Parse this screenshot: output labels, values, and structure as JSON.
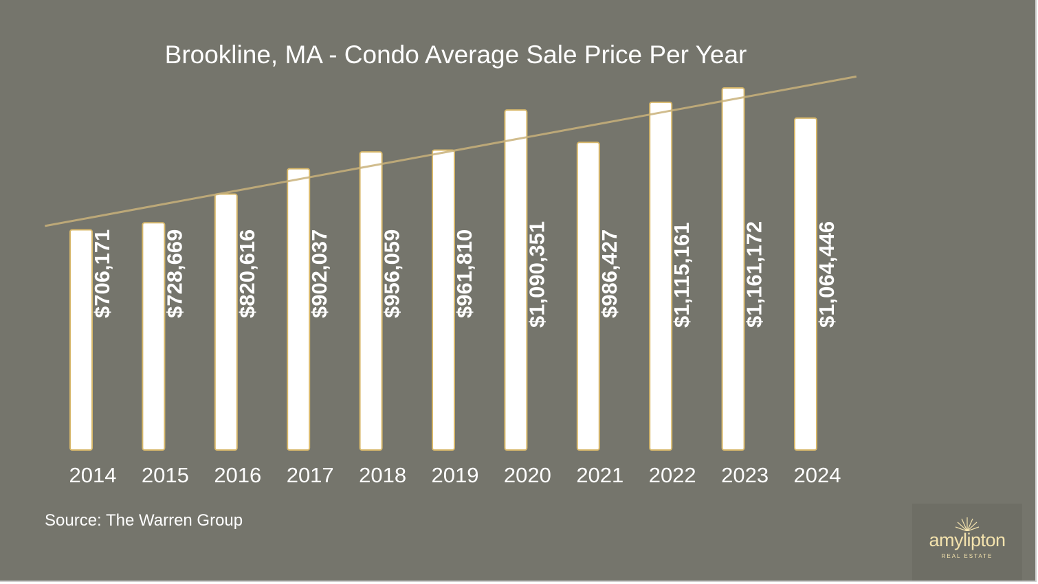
{
  "source": "Source: The Warren Group",
  "logo": {
    "word_part1": "amy",
    "word_part2": "lipton",
    "sub": "REAL ESTATE"
  },
  "colors": {
    "background": "#75756c",
    "bar_fill": "#ffffff",
    "bar_stroke": "#d8b86a",
    "trendline": "#c9b17a",
    "logo_gold": "#f3e2ad"
  },
  "chart_data": {
    "type": "bar",
    "title": "Brookline, MA - Condo Average Sale Price Per Year",
    "xlabel": "",
    "ylabel": "",
    "categories": [
      "2014",
      "2015",
      "2016",
      "2017",
      "2018",
      "2019",
      "2020",
      "2021",
      "2022",
      "2023",
      "2024"
    ],
    "values": [
      706171,
      728669,
      820616,
      902037,
      956059,
      961810,
      1090351,
      986427,
      1115161,
      1161172,
      1064446
    ],
    "data_labels": [
      "$706,171",
      "$728,669",
      "$820,616",
      "$902,037",
      "$956,059",
      "$961,810",
      "$1,090,351",
      "$986,427",
      "$1,115,161",
      "$1,161,172",
      "$1,064,446"
    ],
    "ylim": [
      0,
      1161172
    ],
    "trendline": "linear",
    "grid": false,
    "legend": "none"
  }
}
